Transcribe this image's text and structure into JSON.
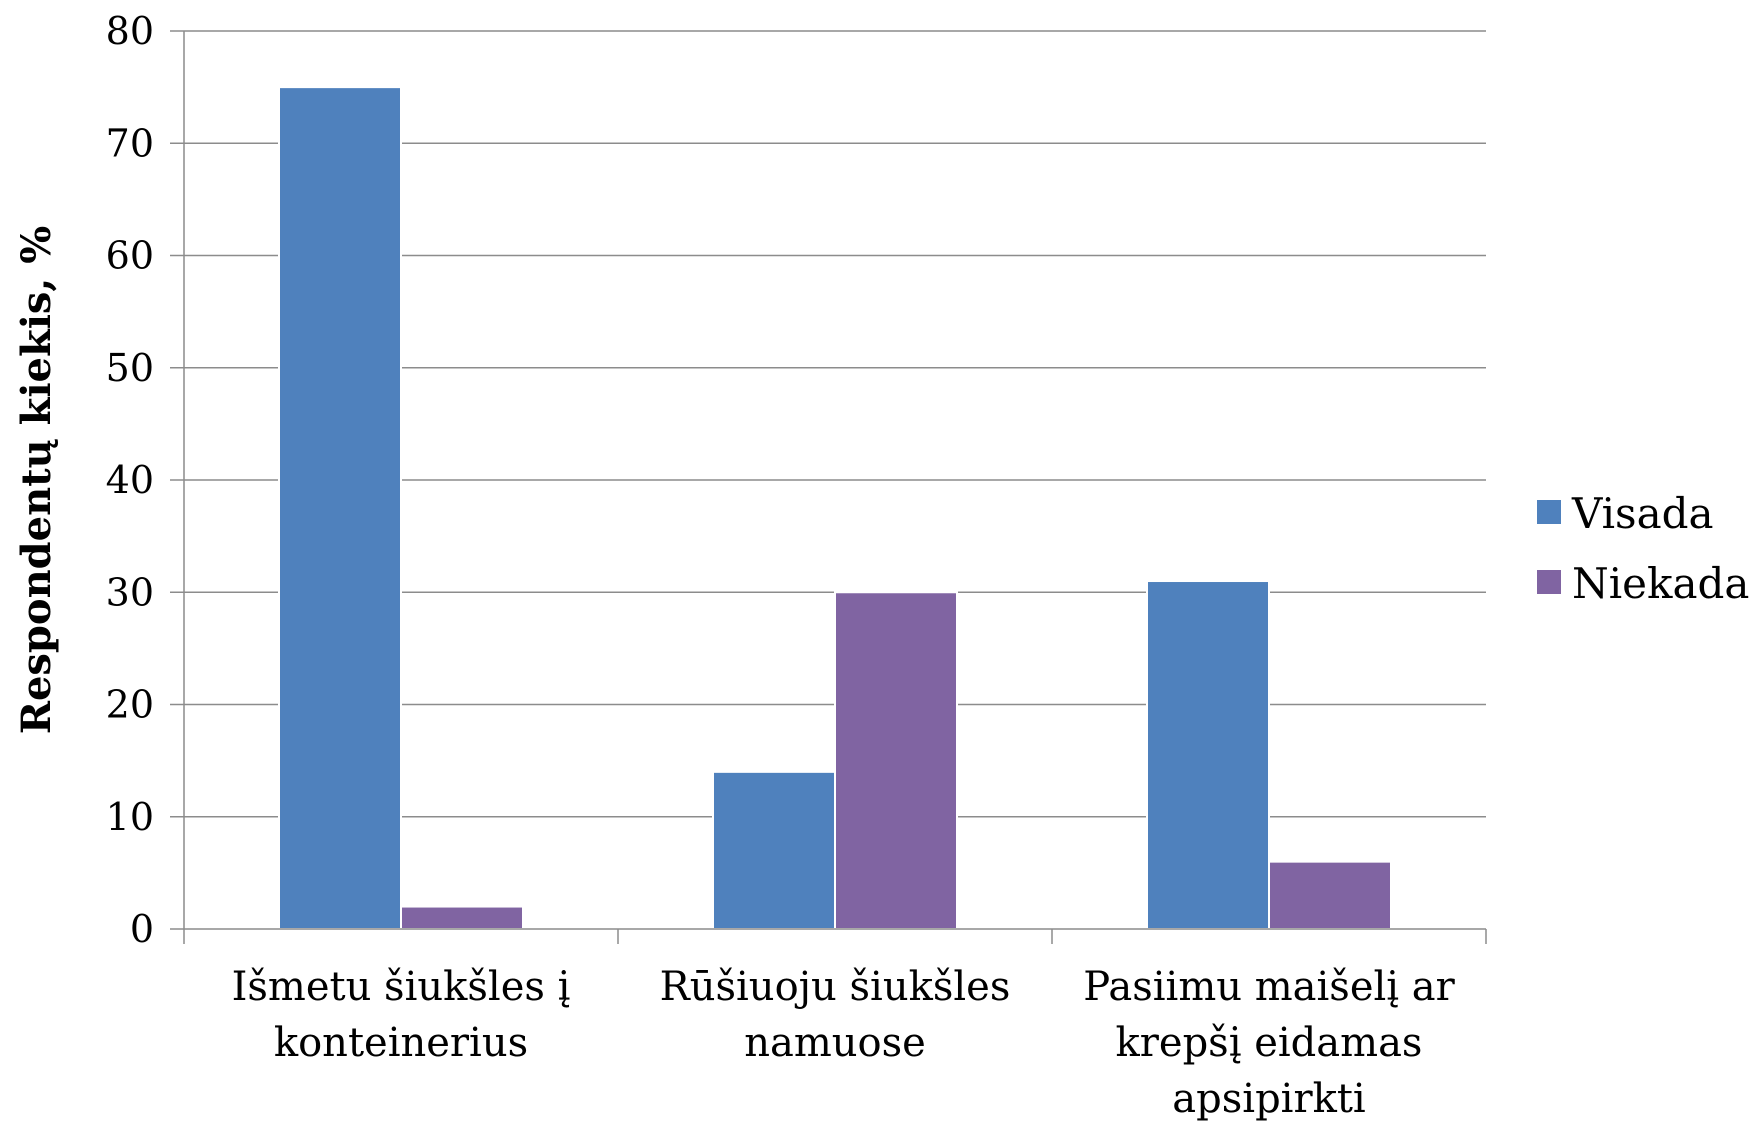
{
  "chart_data": {
    "type": "bar",
    "title": "",
    "xlabel": "",
    "ylabel": "Respondentų kiekis, %",
    "ylim": [
      0,
      80
    ],
    "yticks": [
      0,
      10,
      20,
      30,
      40,
      50,
      60,
      70,
      80
    ],
    "grid": true,
    "legend_position": "right",
    "categories": [
      [
        "Išmetu šiukšles į",
        "konteinerius"
      ],
      [
        "Rūšiuoju šiukšles",
        "namuose"
      ],
      [
        "Pasiimu maišelį ar",
        "krepšį eidamas",
        "apsipirkti"
      ]
    ],
    "series": [
      {
        "name": "Visada",
        "color": "#4F81BD",
        "values": [
          75,
          14,
          31
        ]
      },
      {
        "name": "Niekada",
        "color": "#8064A2",
        "values": [
          2,
          30,
          6
        ]
      }
    ]
  }
}
